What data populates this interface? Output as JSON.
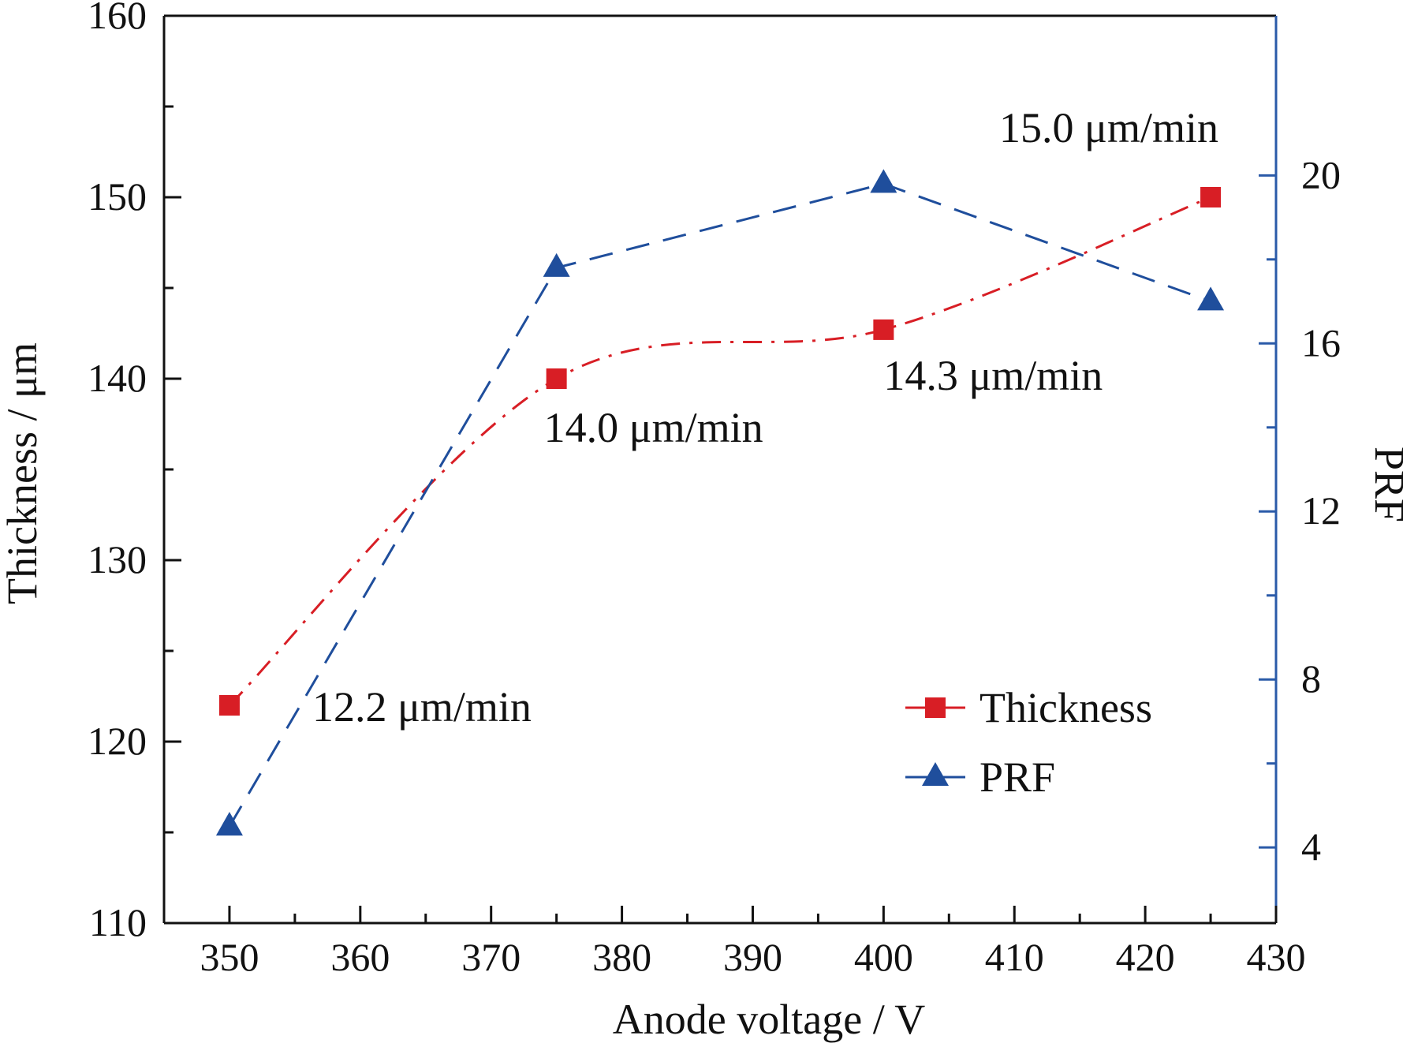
{
  "chart_data": {
    "type": "line",
    "title": "",
    "xlabel": "Anode voltage / V",
    "ylabel": "Thickness / μm",
    "y2label": "PRF",
    "xlim": [
      345,
      430
    ],
    "ylim": [
      110,
      160
    ],
    "y2lim": [
      2.2,
      23.8
    ],
    "xticks": [
      350,
      360,
      370,
      380,
      390,
      400,
      410,
      420,
      430
    ],
    "yticks": [
      110,
      120,
      130,
      140,
      150,
      160
    ],
    "y2ticks": [
      4,
      8,
      12,
      16,
      20
    ],
    "grid": false,
    "legend_position": "bottom-right",
    "x": [
      350,
      375,
      400,
      425
    ],
    "series": [
      {
        "name": "Thickness",
        "axis": "left",
        "marker": "square",
        "style": "dash-dot",
        "smooth": true,
        "values": [
          122,
          140,
          142.7,
          150
        ]
      },
      {
        "name": "PRF",
        "axis": "right",
        "marker": "triangle",
        "style": "dashed",
        "smooth": false,
        "values": [
          4.5,
          17.8,
          19.8,
          17
        ]
      }
    ],
    "annotations": [
      {
        "text": "12.2 μm/min",
        "x": 350,
        "y": 122
      },
      {
        "text": "14.0 μm/min",
        "x": 375,
        "y": 140
      },
      {
        "text": "14.3 μm/min",
        "x": 400,
        "y": 142.7
      },
      {
        "text": "15.0 μm/min",
        "x": 425,
        "y": 150
      }
    ],
    "colors": {
      "Thickness": "#d81e25",
      "PRF": "#1f4e9c",
      "right_axis": "#2a5aa8",
      "axis": "#111111"
    }
  }
}
